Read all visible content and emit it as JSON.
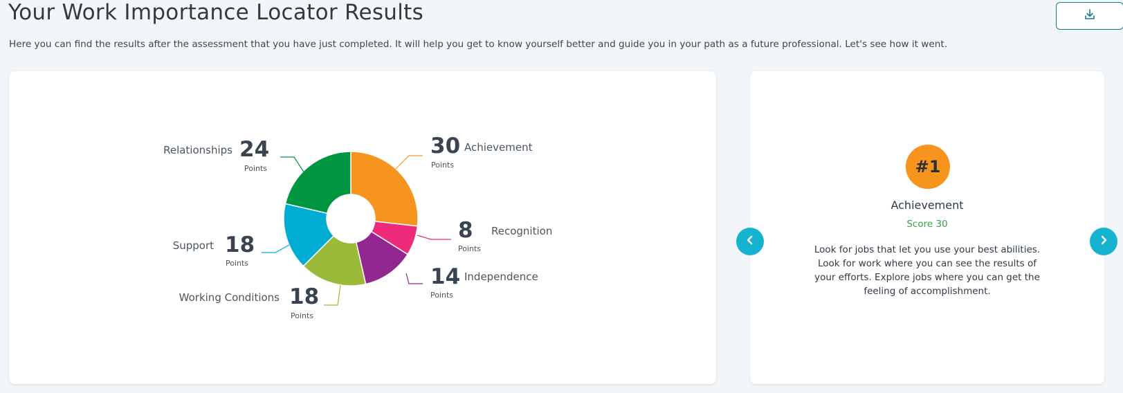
{
  "header": {
    "title": "Your Work Importance Locator Results",
    "subtitle": "Here you can find the results after the assessment that you have just completed. It will help you get to know yourself better and guide you in your path as a future professional. Let's see how it went.",
    "download_icon": "download-icon"
  },
  "chart_data": {
    "type": "pie",
    "variant": "donut",
    "unit_label": "Points",
    "slices": [
      {
        "name": "Achievement",
        "value": 30,
        "color": "#f7941e"
      },
      {
        "name": "Recognition",
        "value": 8,
        "color": "#ee2a7b"
      },
      {
        "name": "Independence",
        "value": 14,
        "color": "#92278f"
      },
      {
        "name": "Working Conditions",
        "value": 18,
        "color": "#9cba3a"
      },
      {
        "name": "Support",
        "value": 18,
        "color": "#00acd2"
      },
      {
        "name": "Relationships",
        "value": 24,
        "color": "#00953f"
      }
    ]
  },
  "detail": {
    "rank": "#1",
    "name": "Achievement",
    "score": "Score 30",
    "description": "Look for jobs that let you use your best abilities. Look for work where you can see the results of your efforts. Explore jobs where you can get the feeling of accomplishment.",
    "prev_icon": "chevron-left-icon",
    "next_icon": "chevron-right-icon"
  },
  "colors": {
    "accent": "#16b2d2",
    "badge": "#f7941e",
    "score_text": "#3aa048",
    "download_border": "#147a8c"
  }
}
